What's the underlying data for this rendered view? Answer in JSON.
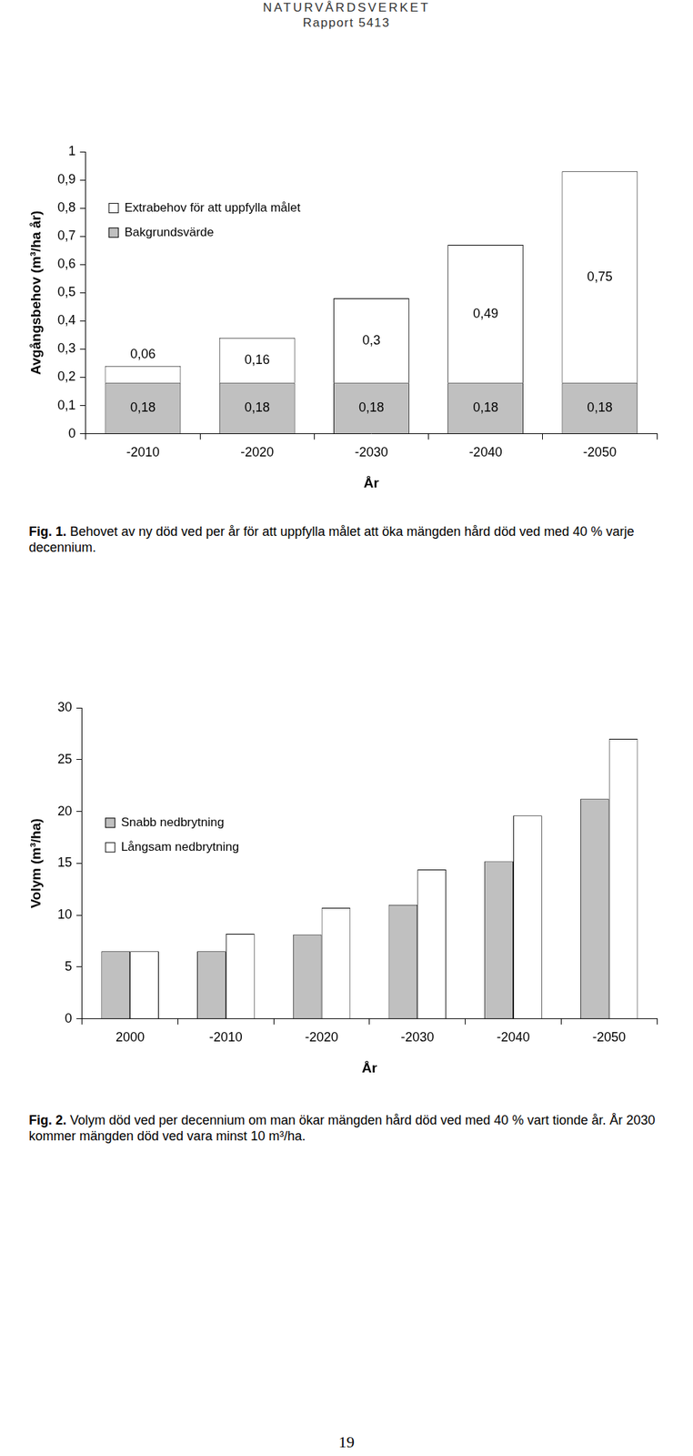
{
  "header": {
    "organisation": "NATURVÅRDSVERKET",
    "report": "Rapport 5413"
  },
  "chart_data": [
    {
      "type": "bar",
      "stacked": true,
      "categories": [
        "-2010",
        "-2020",
        "-2030",
        "-2040",
        "-2050"
      ],
      "series": [
        {
          "name": "Bakgrundsvärde",
          "color": "#c0c0c0",
          "values": [
            0.18,
            0.18,
            0.18,
            0.18,
            0.18
          ],
          "value_labels": [
            "0,18",
            "0,18",
            "0,18",
            "0,18",
            "0,18"
          ]
        },
        {
          "name": "Extrabehov för att uppfylla målet",
          "color": "#ffffff",
          "values": [
            0.06,
            0.16,
            0.3,
            0.49,
            0.75
          ],
          "value_labels": [
            "0,06",
            "0,16",
            "0,3",
            "0,49",
            "0,75"
          ]
        }
      ],
      "x_label": "År",
      "y_label": "Avgångsbehov (m³/ha år)",
      "ylim": [
        0,
        1
      ],
      "yticks": [
        0,
        {
          "value": 0.1,
          "label": "0,1"
        },
        {
          "value": 0.2,
          "label": "0,2"
        },
        {
          "value": 0.3,
          "label": "0,3"
        },
        {
          "value": 0.4,
          "label": "0,4"
        },
        {
          "value": 0.5,
          "label": "0,5"
        },
        {
          "value": 0.6,
          "label": "0,6"
        },
        {
          "value": 0.7,
          "label": "0,7"
        },
        {
          "value": 0.8,
          "label": "0,8"
        },
        {
          "value": 0.9,
          "label": "0,9"
        },
        1
      ],
      "grid": false,
      "legend": "upper left",
      "data_labels": true
    },
    {
      "type": "bar",
      "categories": [
        "2000",
        "-2010",
        "-2020",
        "-2030",
        "-2040",
        "-2050"
      ],
      "series": [
        {
          "name": "Snabb nedbrytning",
          "color": "#c0c0c0",
          "values": [
            6.5,
            6.5,
            8.1,
            11,
            15.2,
            21.2
          ]
        },
        {
          "name": "Långsam nedbrytning",
          "color": "#ffffff",
          "values": [
            6.5,
            8.2,
            10.7,
            14.4,
            19.6,
            27
          ]
        }
      ],
      "x_label": "År",
      "y_label": "Volym (m³/ha)",
      "ylim": [
        0,
        30
      ],
      "yticks": [
        0,
        5,
        10,
        15,
        20,
        25,
        30
      ],
      "grid": false,
      "legend": "upper left",
      "data_labels": false
    }
  ],
  "captions": [
    {
      "label": "Fig. 1.",
      "text": "Behovet av ny död ved per år för att uppfylla målet att öka mängden hård död ved med 40 % varje decennium."
    },
    {
      "label": "Fig. 2.",
      "text": "Volym död ved per decennium om man ökar mängden hård död ved med 40 % vart tionde år. År 2030 kommer mängden död ved vara minst 10 m³/ha."
    }
  ],
  "page_number": 19
}
